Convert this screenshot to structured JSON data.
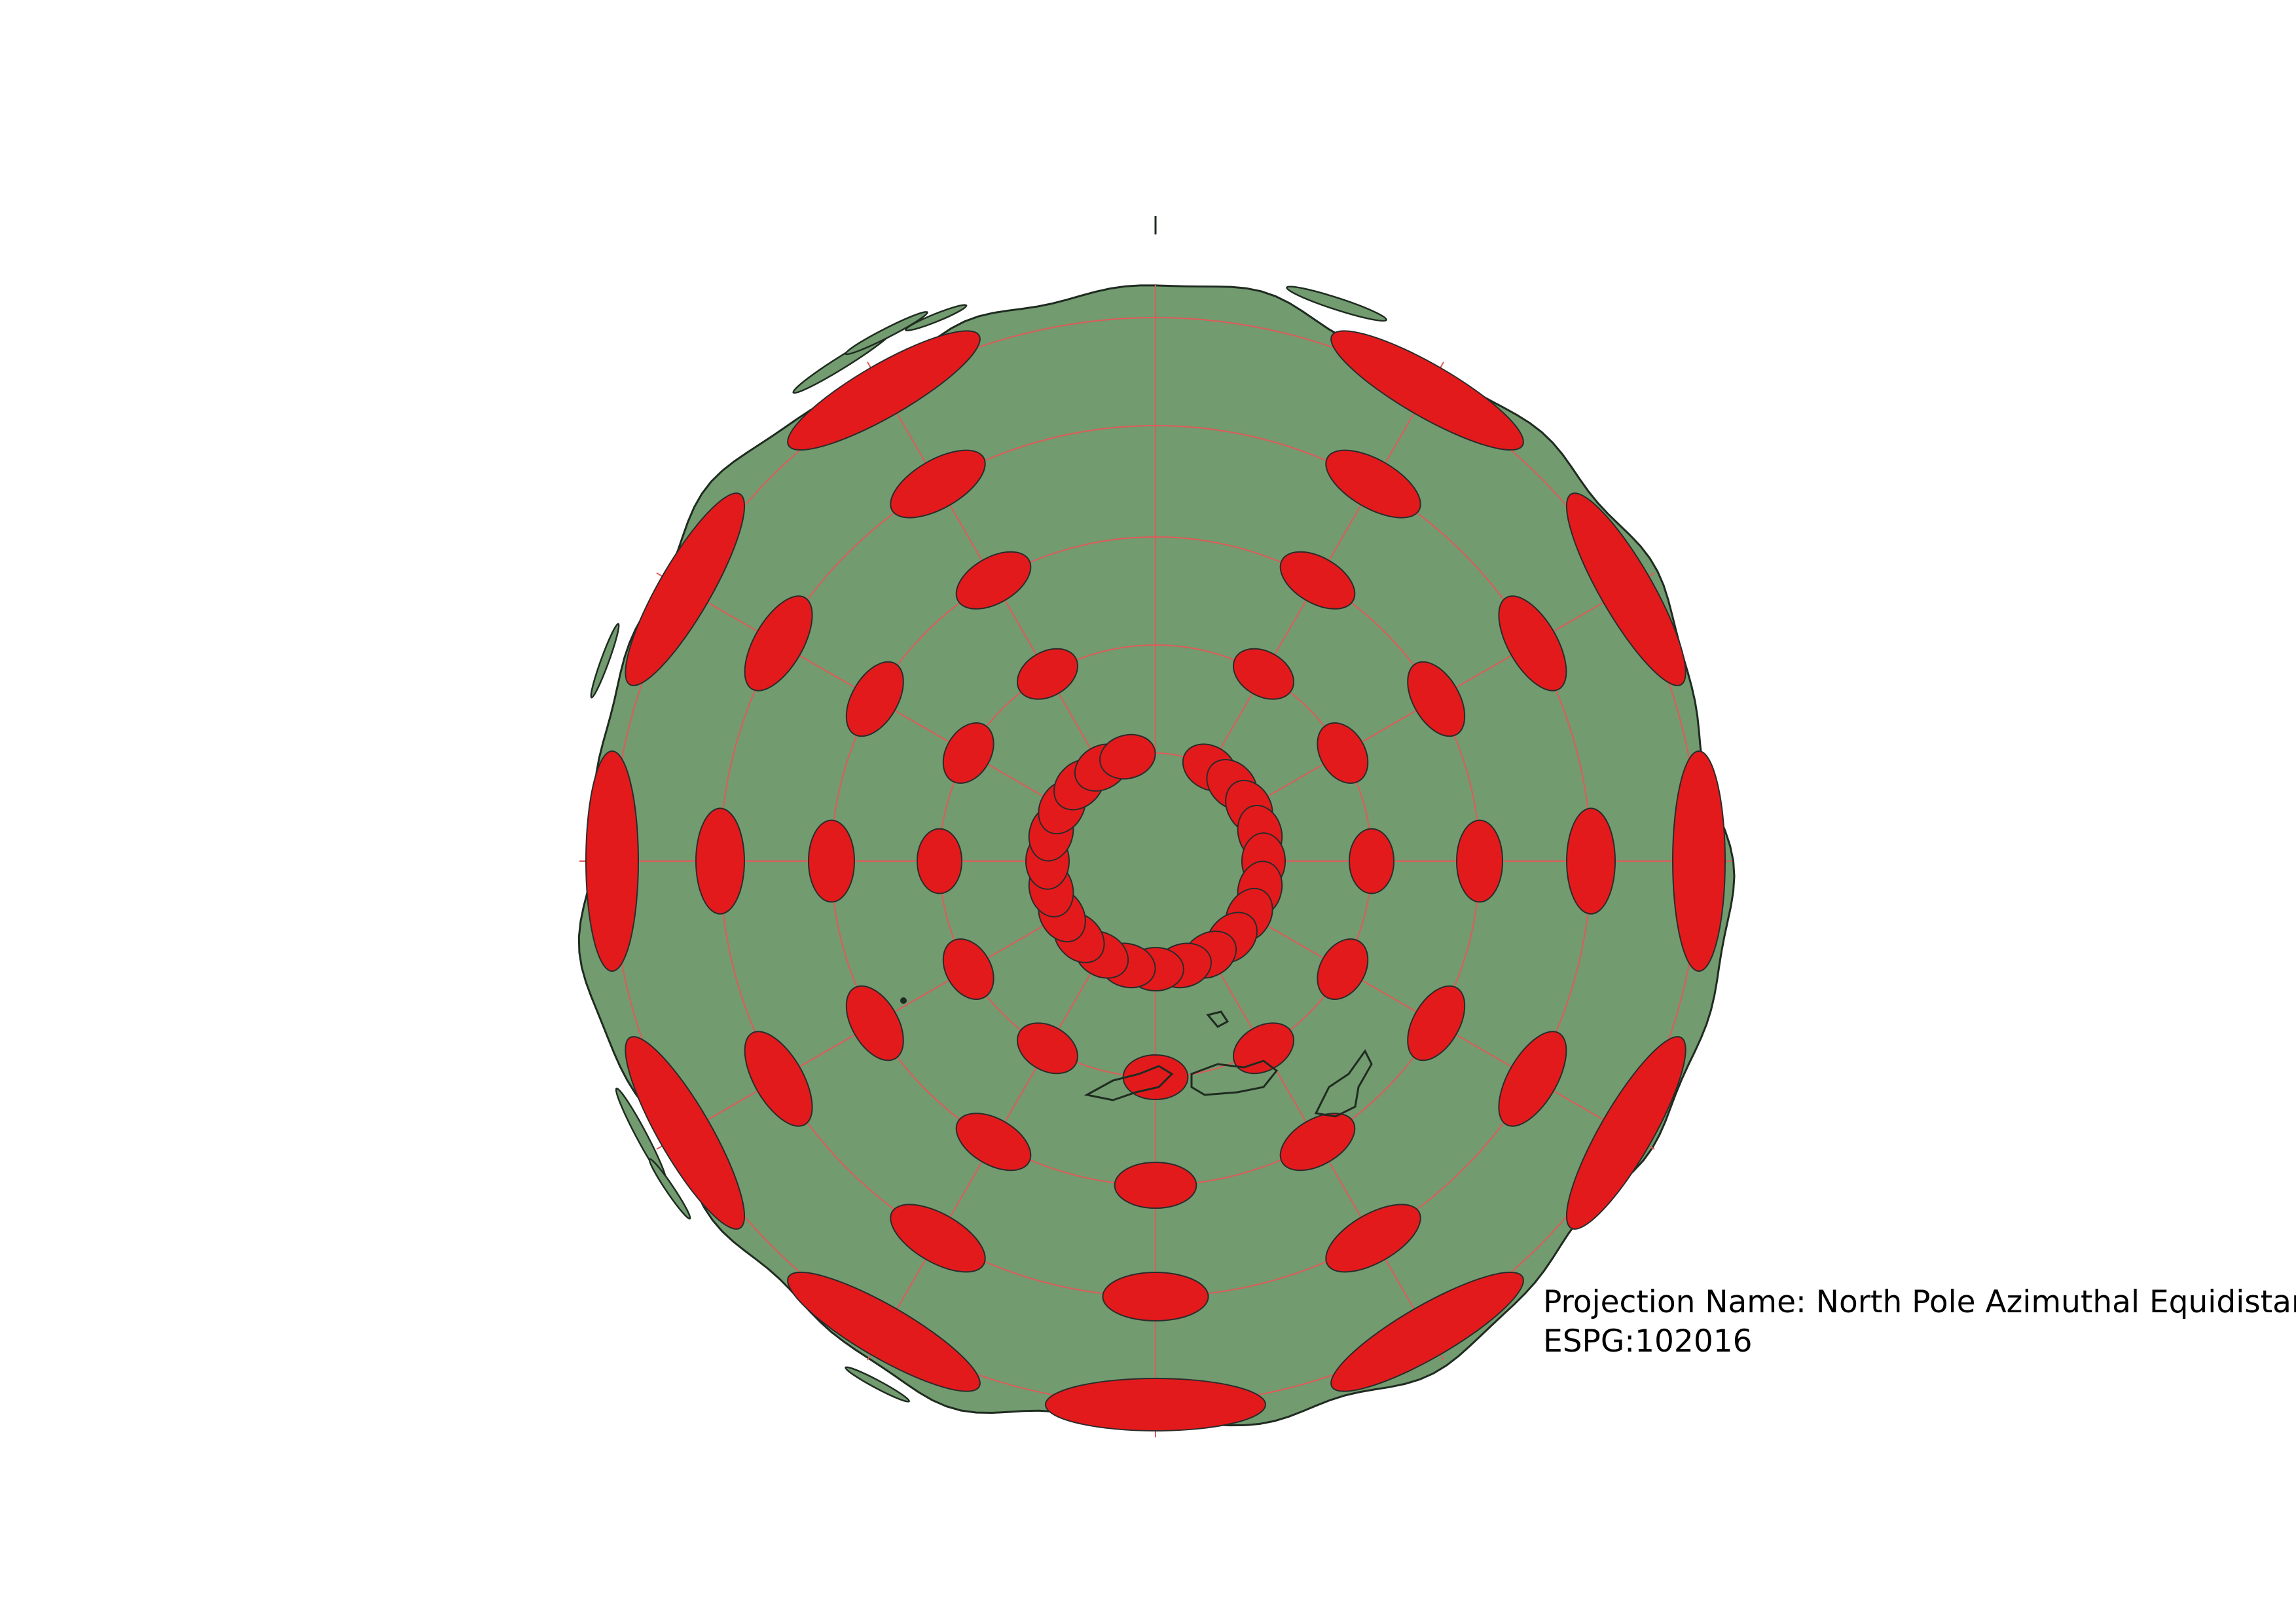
{
  "projection_label": "Projection Name: North Pole Azimuthal Equidistant",
  "epsg_label": "ESPG:102016",
  "colors": {
    "land": "#729b6f",
    "coastline": "#1f2b20",
    "ellipse_fill": "#e31a1c",
    "ellipse_stroke": "#2b2b2b",
    "graticule": "#e05a5a",
    "background": "#ffffff"
  },
  "icons": {
    "tissot": "tissot-indicatrix-ellipse",
    "north_tick": "north-tick-mark"
  },
  "graticule": {
    "parallels_count": 5,
    "meridians_count": 12
  }
}
